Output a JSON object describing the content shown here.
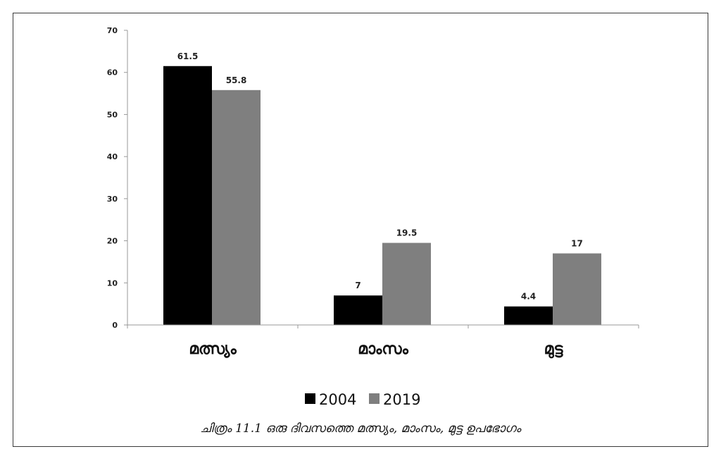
{
  "chart_data": {
    "type": "bar",
    "categories": [
      "മത്സ്യം",
      "മാംസം",
      "മുട്ട"
    ],
    "series": [
      {
        "name": "2004",
        "values": [
          61.5,
          7,
          4.4
        ],
        "color": "#000000"
      },
      {
        "name": "2019",
        "values": [
          55.8,
          19.5,
          17
        ],
        "color": "#7f7f7f"
      }
    ],
    "ylim": [
      0,
      70
    ],
    "yticks": [
      0,
      10,
      20,
      30,
      40,
      50,
      60,
      70
    ],
    "data_labels": [
      [
        "61.5",
        "7",
        "4.4"
      ],
      [
        "55.8",
        "19.5",
        "17"
      ]
    ],
    "grid": false,
    "legend": "bottom",
    "caption": "ചിത്രം 11.1 ഒരു ദിവസത്തെ മത്സ്യം, മാംസം, മുട്ട ഉപഭോഗം"
  }
}
